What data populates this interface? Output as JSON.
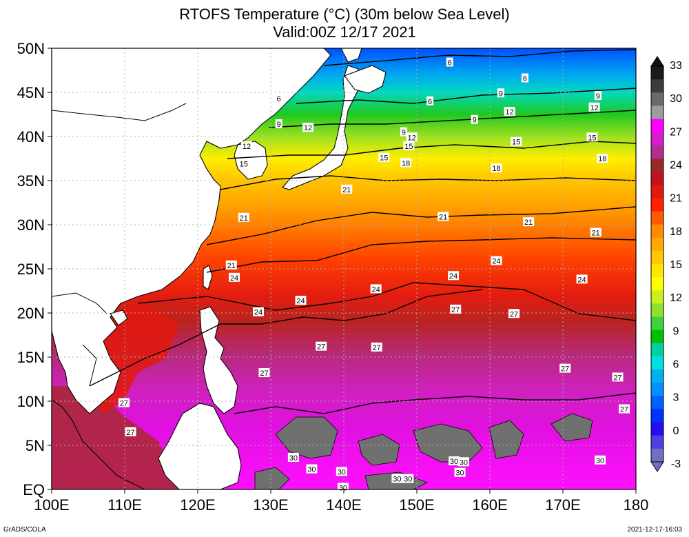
{
  "title_line1": "RTOFS Temperature (°C) (30m below Sea Level)",
  "title_line2": "Valid:00Z 12/17 2021",
  "y_ticks": [
    "50N",
    "45N",
    "40N",
    "35N",
    "30N",
    "25N",
    "20N",
    "15N",
    "10N",
    "5N",
    "EQ"
  ],
  "x_ticks": [
    "100E",
    "110E",
    "120E",
    "130E",
    "140E",
    "150E",
    "160E",
    "170E",
    "180"
  ],
  "colorbar_labels": [
    "33",
    "30",
    "27",
    "24",
    "21",
    "18",
    "15",
    "12",
    "9",
    "6",
    "3",
    "0",
    "-3"
  ],
  "colorbar_colors": [
    "#1a1a1a",
    "#3c3c3c",
    "#6a6a6a",
    "#9c9c9c",
    "#ff00ff",
    "#d81cd0",
    "#b03090",
    "#9a2a2a",
    "#c0141c",
    "#e01810",
    "#ff2000",
    "#ff5a00",
    "#ff8a00",
    "#ffaa00",
    "#ffc800",
    "#ffe600",
    "#ffff00",
    "#c8f020",
    "#90e030",
    "#40d040",
    "#00c000",
    "#00d0a0",
    "#00e0e0",
    "#00b0f0",
    "#0090ff",
    "#0060ff",
    "#0030ff",
    "#2010f0",
    "#5040e0",
    "#7070c0"
  ],
  "contour_labels": [
    {
      "v": "6",
      "lon": 154.5,
      "lat": 48.4
    },
    {
      "v": "6",
      "lon": 164.8,
      "lat": 46.6
    },
    {
      "v": "9",
      "lon": 157.9,
      "lat": 41.9
    },
    {
      "v": "6",
      "lon": 131.1,
      "lat": 44.3
    },
    {
      "v": "9",
      "lon": 131.1,
      "lat": 41.4
    },
    {
      "v": "12",
      "lon": 135.1,
      "lat": 41.0
    },
    {
      "v": "6",
      "lon": 151.8,
      "lat": 44.0
    },
    {
      "v": "9",
      "lon": 161.5,
      "lat": 44.9
    },
    {
      "v": "9",
      "lon": 174.8,
      "lat": 44.6
    },
    {
      "v": "12",
      "lon": 162.7,
      "lat": 42.8
    },
    {
      "v": "12",
      "lon": 174.3,
      "lat": 43.3
    },
    {
      "v": "9",
      "lon": 148.2,
      "lat": 40.5
    },
    {
      "v": "12",
      "lon": 149.3,
      "lat": 39.9
    },
    {
      "v": "15",
      "lon": 148.9,
      "lat": 38.9
    },
    {
      "v": "15",
      "lon": 163.6,
      "lat": 39.4
    },
    {
      "v": "15",
      "lon": 174.0,
      "lat": 39.9
    },
    {
      "v": "12",
      "lon": 126.7,
      "lat": 38.9
    },
    {
      "v": "15",
      "lon": 126.3,
      "lat": 36.9
    },
    {
      "v": "15",
      "lon": 145.5,
      "lat": 37.6
    },
    {
      "v": "18",
      "lon": 148.5,
      "lat": 37.0
    },
    {
      "v": "18",
      "lon": 160.9,
      "lat": 36.4
    },
    {
      "v": "18",
      "lon": 175.4,
      "lat": 37.5
    },
    {
      "v": "21",
      "lon": 140.4,
      "lat": 34.0
    },
    {
      "v": "21",
      "lon": 126.3,
      "lat": 30.8
    },
    {
      "v": "21",
      "lon": 153.6,
      "lat": 30.9
    },
    {
      "v": "21",
      "lon": 165.3,
      "lat": 30.3
    },
    {
      "v": "21",
      "lon": 174.5,
      "lat": 29.1
    },
    {
      "v": "21",
      "lon": 124.6,
      "lat": 25.4
    },
    {
      "v": "24",
      "lon": 125.0,
      "lat": 24.0
    },
    {
      "v": "24",
      "lon": 160.9,
      "lat": 25.9
    },
    {
      "v": "24",
      "lon": 155.0,
      "lat": 24.2
    },
    {
      "v": "24",
      "lon": 172.6,
      "lat": 23.8
    },
    {
      "v": "24",
      "lon": 144.4,
      "lat": 22.7
    },
    {
      "v": "24",
      "lon": 134.1,
      "lat": 21.4
    },
    {
      "v": "24",
      "lon": 128.3,
      "lat": 20.1
    },
    {
      "v": "27",
      "lon": 155.3,
      "lat": 20.4
    },
    {
      "v": "27",
      "lon": 163.3,
      "lat": 19.9
    },
    {
      "v": "27",
      "lon": 136.9,
      "lat": 16.2
    },
    {
      "v": "27",
      "lon": 144.5,
      "lat": 16.1
    },
    {
      "v": "27",
      "lon": 129.1,
      "lat": 13.2
    },
    {
      "v": "27",
      "lon": 170.3,
      "lat": 13.7
    },
    {
      "v": "27",
      "lon": 177.5,
      "lat": 12.7
    },
    {
      "v": "27",
      "lon": 178.4,
      "lat": 9.1
    },
    {
      "v": "27",
      "lon": 109.9,
      "lat": 9.8
    },
    {
      "v": "27",
      "lon": 110.8,
      "lat": 6.5
    },
    {
      "v": "30",
      "lon": 133.1,
      "lat": 3.6
    },
    {
      "v": "30",
      "lon": 135.6,
      "lat": 2.3
    },
    {
      "v": "30",
      "lon": 139.7,
      "lat": 2.0
    },
    {
      "v": "30",
      "lon": 155.1,
      "lat": 3.2
    },
    {
      "v": "30",
      "lon": 156.4,
      "lat": 3.1
    },
    {
      "v": "30",
      "lon": 155.9,
      "lat": 1.9
    },
    {
      "v": "30",
      "lon": 147.3,
      "lat": 1.2
    },
    {
      "v": "30",
      "lon": 148.8,
      "lat": 1.2
    },
    {
      "v": "30",
      "lon": 175.1,
      "lat": 3.3
    },
    {
      "v": "30",
      "lon": 139.9,
      "lat": 0.2
    }
  ],
  "credit": "GrADS/COLA",
  "timestamp": "2021-12-17-16:03"
}
